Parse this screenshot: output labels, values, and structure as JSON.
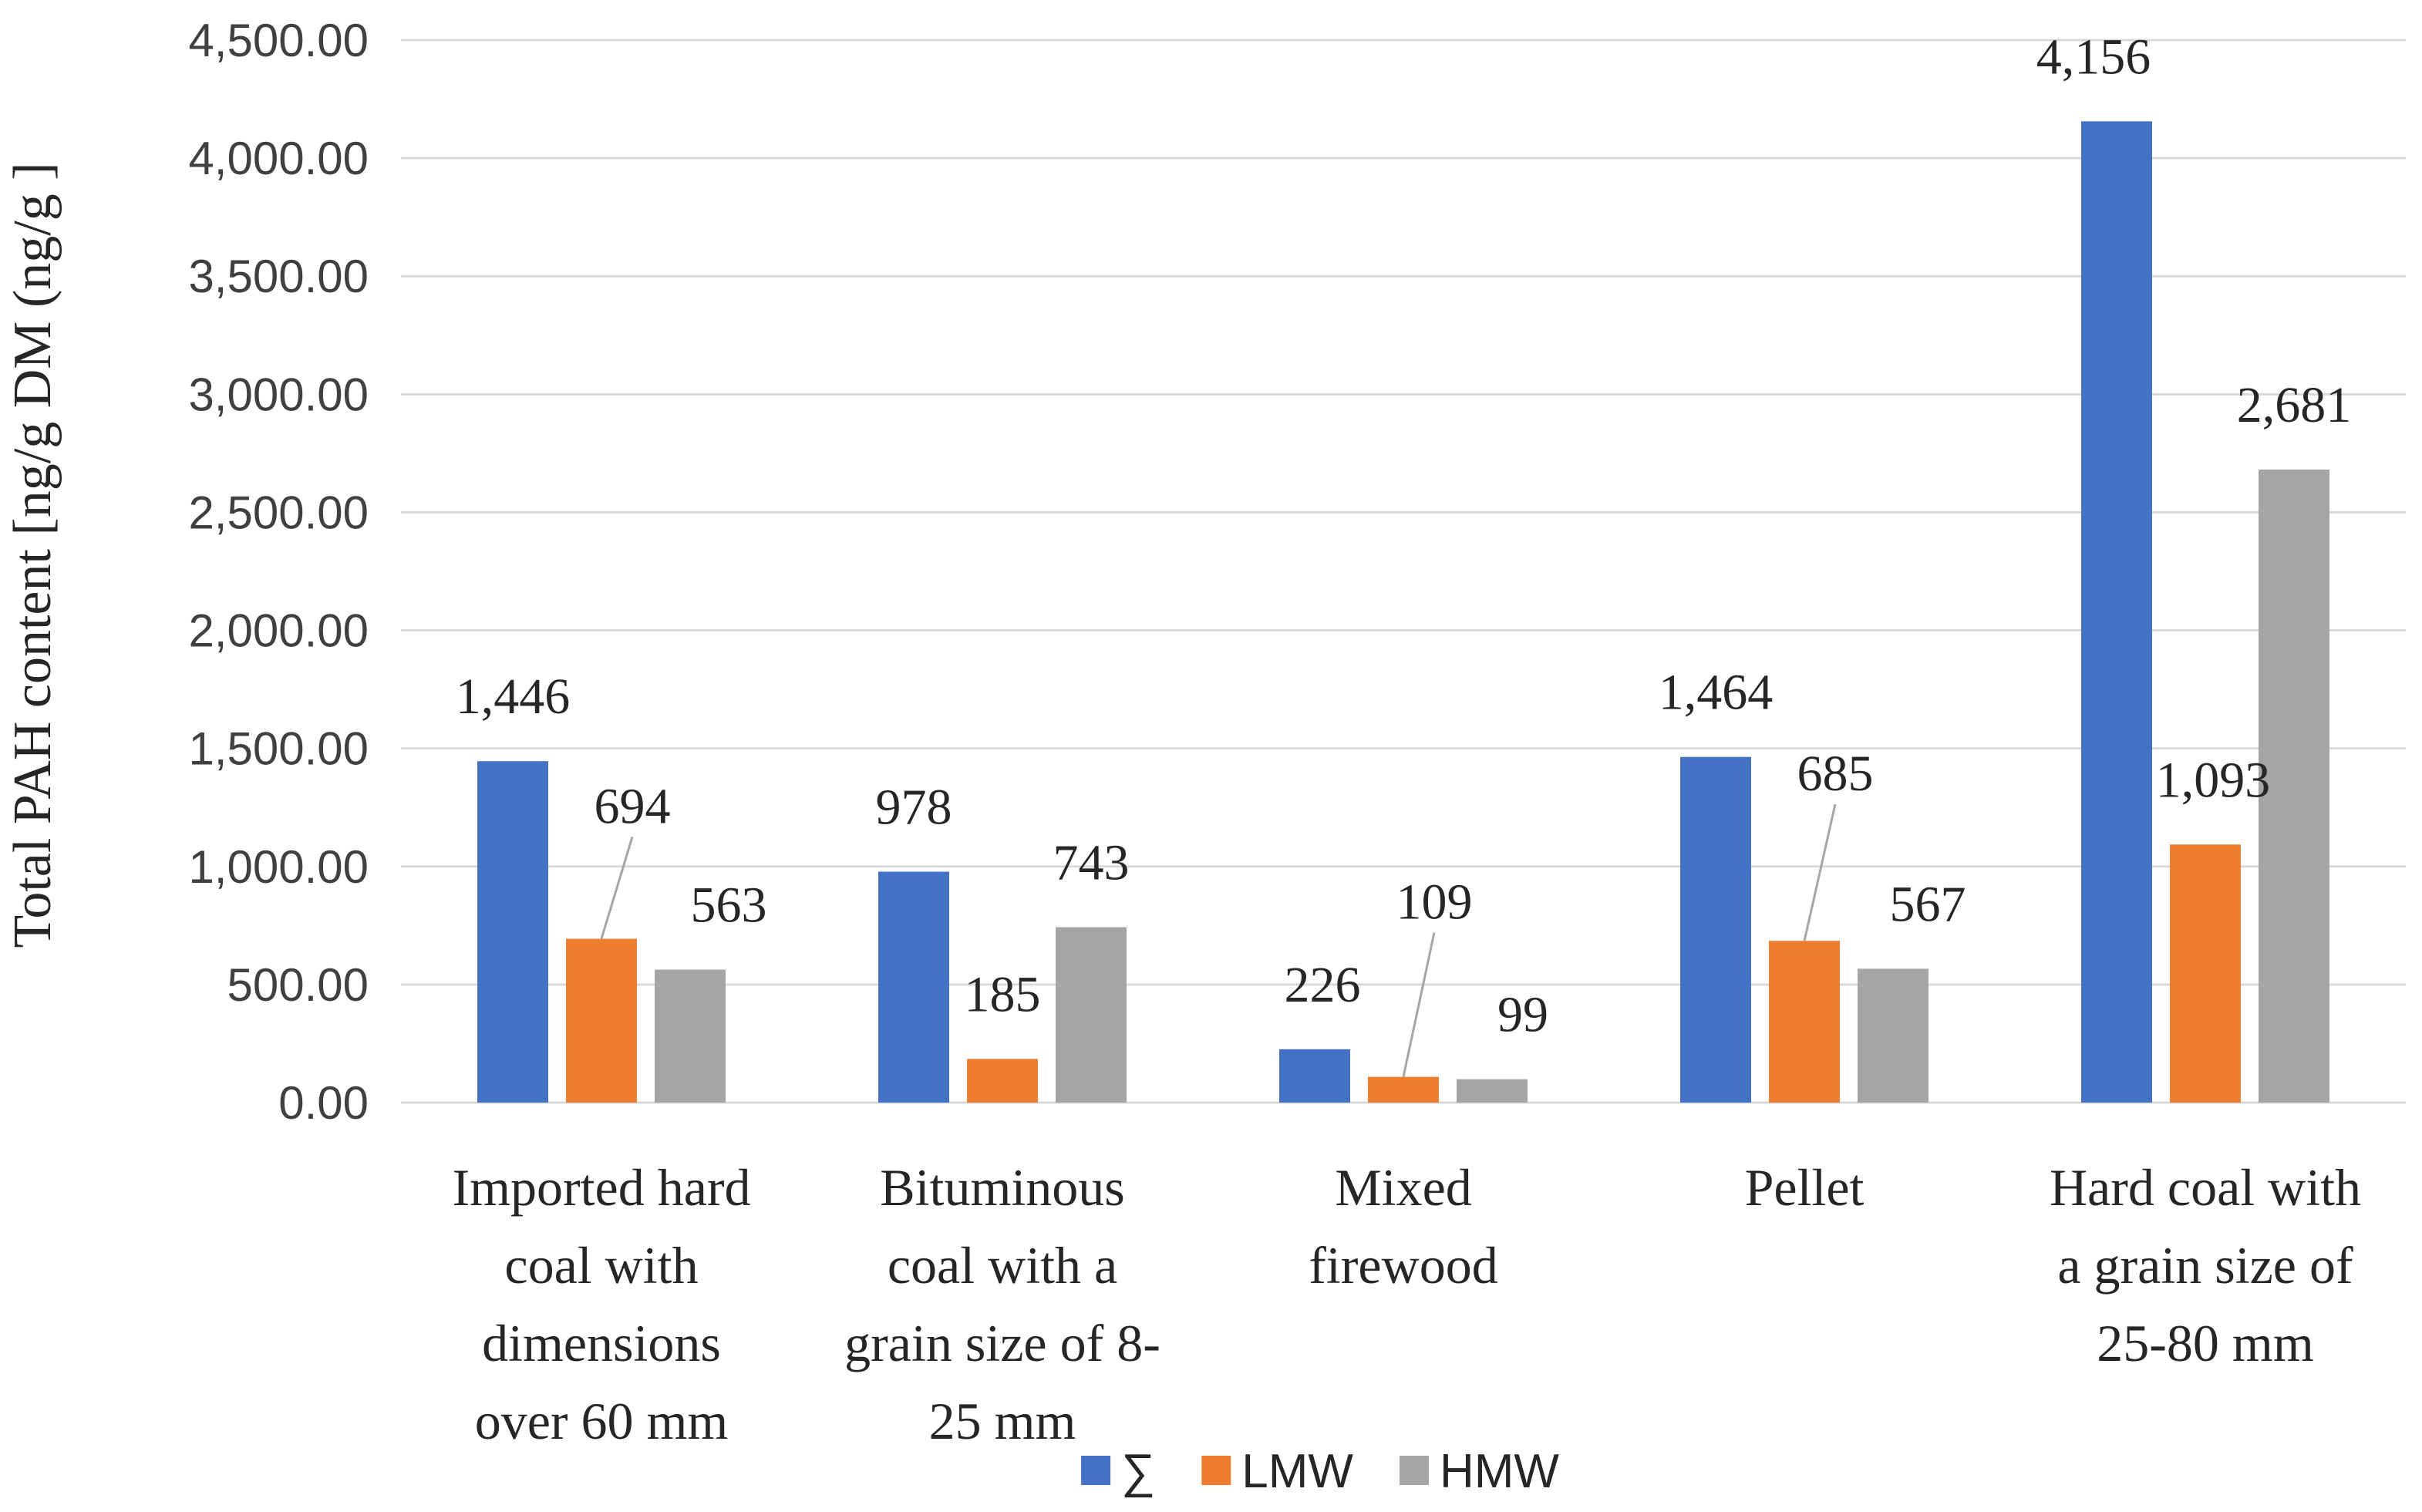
{
  "chart_data": {
    "type": "bar",
    "title": "",
    "xlabel": "",
    "ylabel": "Total PAH content  [ng/g DM (ng/g ]",
    "ylim": [
      0,
      4500
    ],
    "y_ticks": [
      "0.00",
      "500.00",
      "1,000.00",
      "1,500.00",
      "2,000.00",
      "2,500.00",
      "3,000.00",
      "3,500.00",
      "4,000.00",
      "4,500.00"
    ],
    "categories": [
      [
        "Imported hard",
        "coal with",
        "dimensions",
        "over 60 mm"
      ],
      [
        "Bituminous",
        "coal  with a",
        "grain size of 8-",
        "25 mm"
      ],
      [
        "Mixed",
        "firewood"
      ],
      [
        "Pellet"
      ],
      [
        "Hard coal with",
        "a grain size of",
        "25-80 mm"
      ]
    ],
    "series": [
      {
        "name": "∑",
        "color": "#4472C4",
        "values": [
          1446,
          978,
          226,
          1464,
          4156
        ],
        "labels": [
          "1,446",
          "978",
          "226",
          "1,464",
          "4,156"
        ]
      },
      {
        "name": "LMW",
        "color": "#ED7D31",
        "values": [
          694,
          185,
          109,
          685,
          1093
        ],
        "labels": [
          "694",
          "185",
          "109",
          "685",
          "1,093"
        ]
      },
      {
        "name": "HMW",
        "color": "#A5A5A5",
        "values": [
          563,
          743,
          99,
          567,
          2681
        ],
        "labels": [
          "563",
          "743",
          "99",
          "567",
          "2,681"
        ]
      }
    ],
    "grid": true,
    "legend_position": "bottom-center",
    "gridline_color": "#D9D9D9"
  }
}
